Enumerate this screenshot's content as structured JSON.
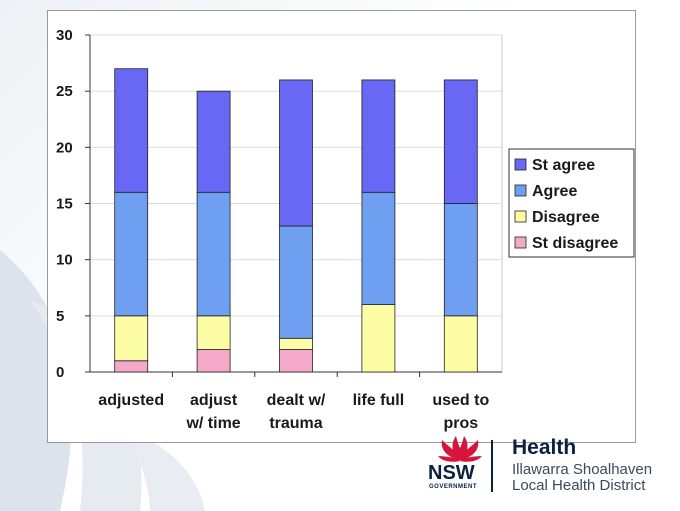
{
  "chart_data": {
    "type": "bar",
    "stacked": true,
    "categories": [
      [
        "adjusted"
      ],
      [
        "adjust",
        "w/ time"
      ],
      [
        "dealt w/",
        "trauma"
      ],
      [
        "life full"
      ],
      [
        "used to",
        "pros"
      ]
    ],
    "series": [
      {
        "name": "St disagree",
        "color": "#f5a9c8",
        "values": [
          1,
          2,
          2,
          0,
          0
        ]
      },
      {
        "name": "Disagree",
        "color": "#fdfda6",
        "values": [
          4,
          3,
          1,
          6,
          5
        ]
      },
      {
        "name": "Agree",
        "color": "#6e9ff0",
        "values": [
          11,
          11,
          10,
          10,
          10
        ]
      },
      {
        "name": "St agree",
        "color": "#6868f4",
        "values": [
          11,
          9,
          13,
          10,
          11
        ]
      }
    ],
    "y_ticks": [
      "0",
      "5",
      "10",
      "15",
      "20",
      "25",
      "30"
    ],
    "ylim": [
      0,
      30
    ],
    "grid": true,
    "legend_position": "right",
    "legend_order": [
      "St agree",
      "Agree",
      "Disagree",
      "St disagree"
    ]
  },
  "logo": {
    "brand": "NSW",
    "government": "GOVERNMENT",
    "health": "Health",
    "district_line1": "Illawarra Shoalhaven",
    "district_line2": "Local Health District"
  }
}
